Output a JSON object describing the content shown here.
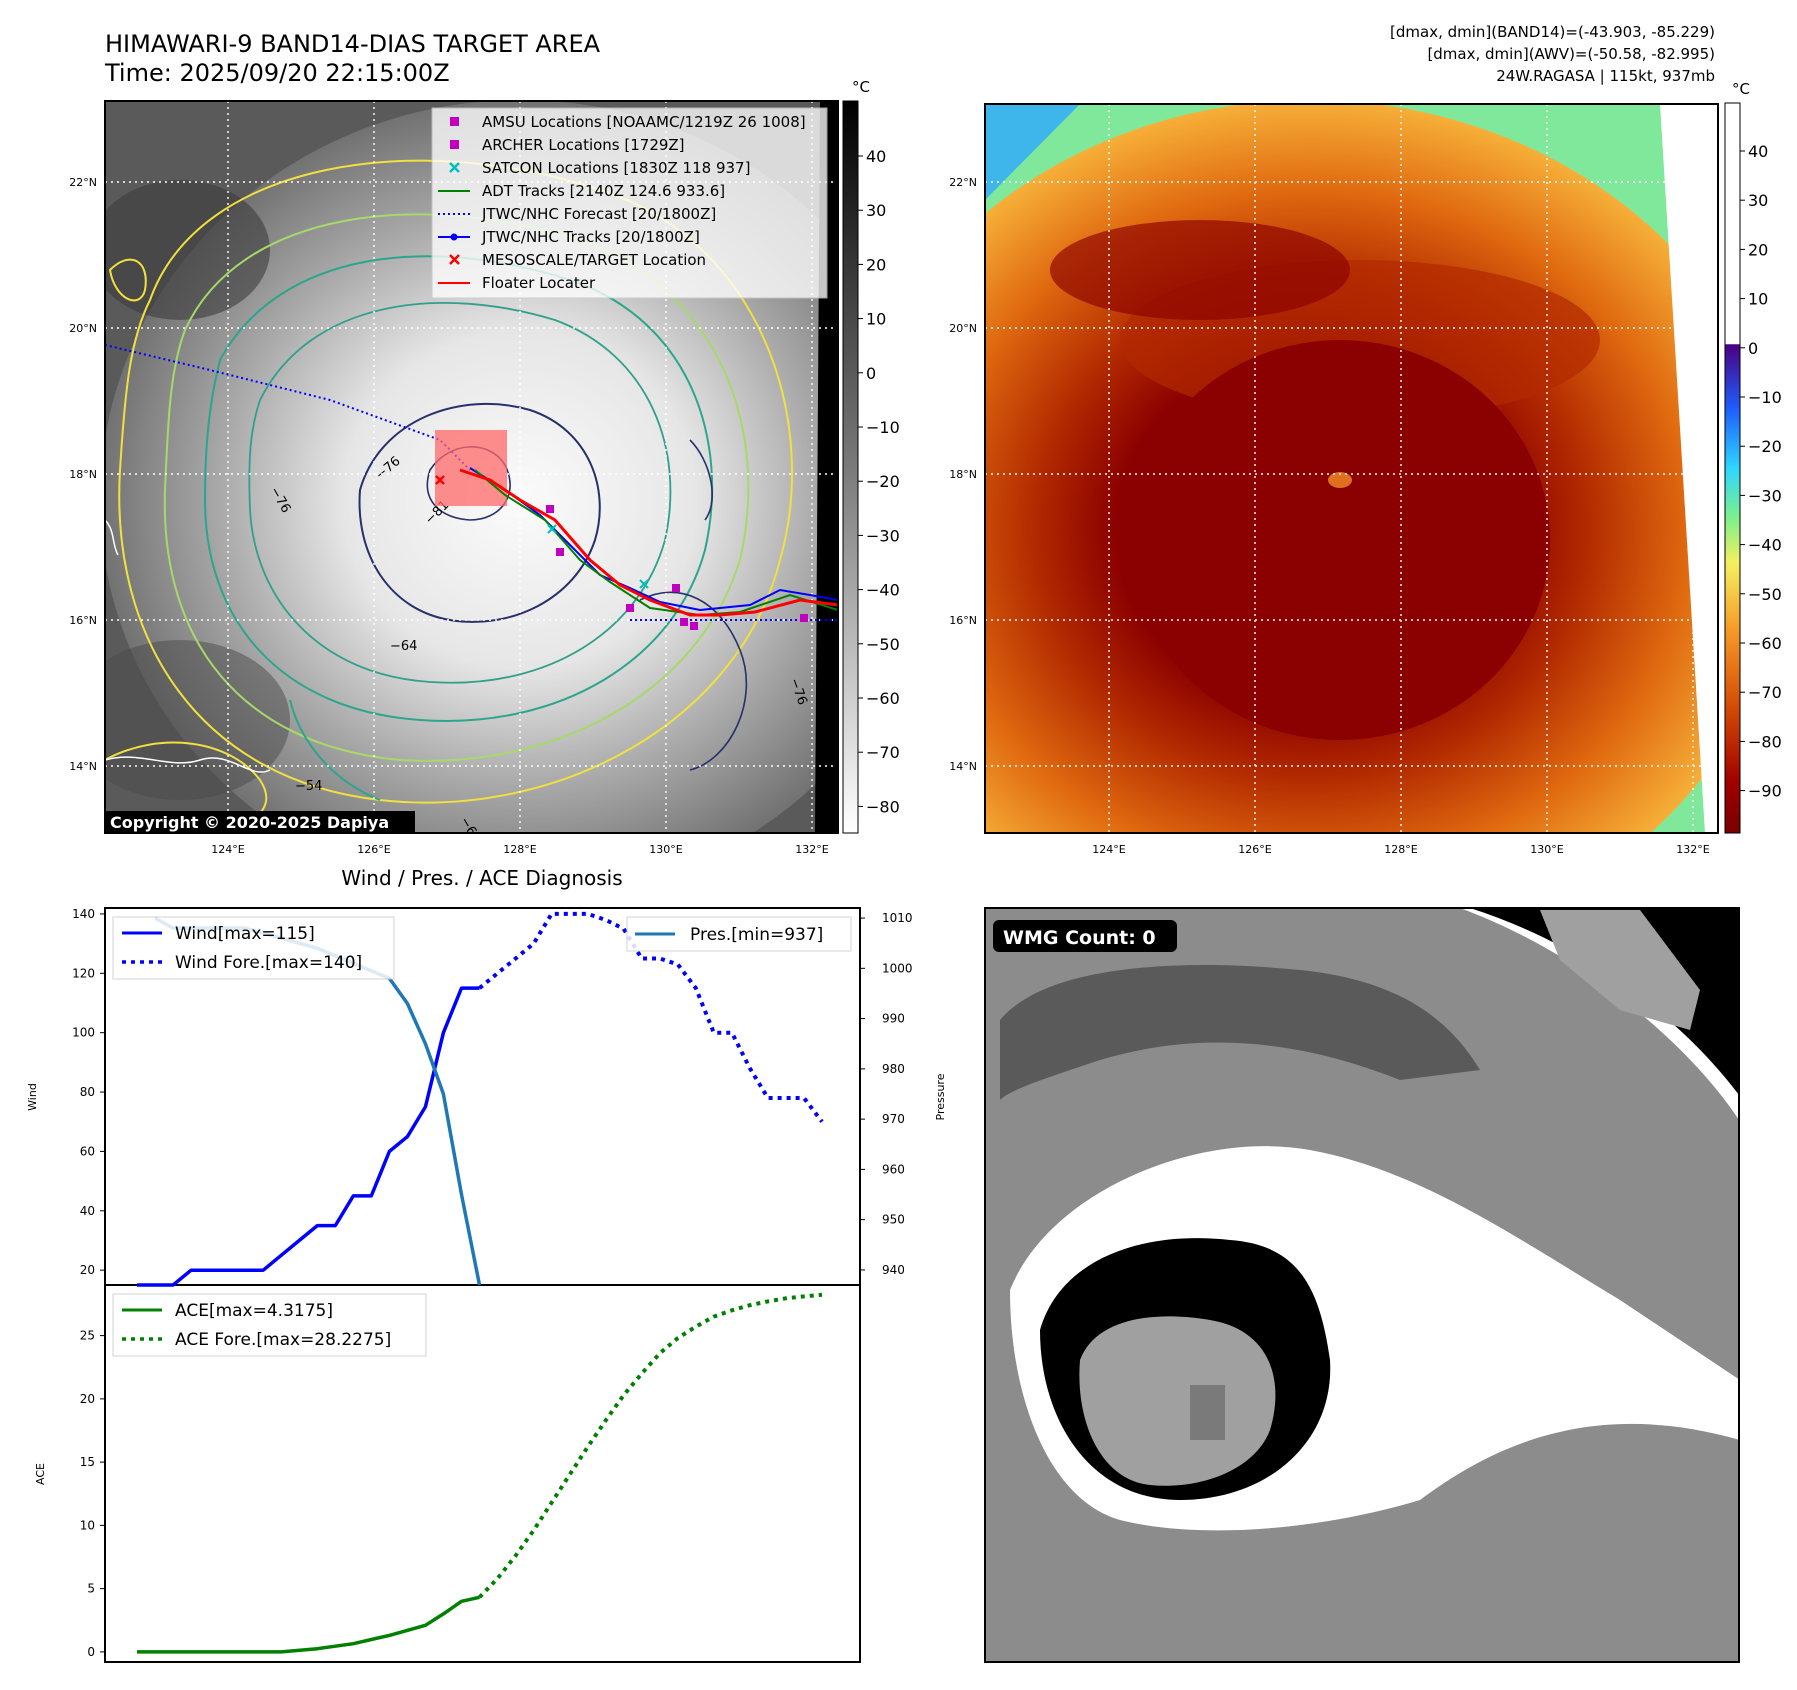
{
  "header": {
    "title_line1": "HIMAWARI-9 BAND14-DIAS TARGET AREA",
    "title_line2": "Time: 2025/09/20 22:15:00Z",
    "info_line1": "[dmax, dmin](BAND14)=(-43.903, -85.229)",
    "info_line2": "[dmax, dmin](AWV)=(-50.58, -82.995)",
    "info_line3": "24W.RAGASA | 115kt, 937mb"
  },
  "map_panel": {
    "lat_labels": [
      "22°N",
      "20°N",
      "18°N",
      "16°N",
      "14°N"
    ],
    "lon_labels": [
      "124°E",
      "126°E",
      "128°E",
      "130°E",
      "132°E"
    ],
    "colorbar_unit": "°C",
    "colorbar_ticks": [
      "40",
      "30",
      "20",
      "10",
      "0",
      "−10",
      "−20",
      "−30",
      "−40",
      "−50",
      "−60",
      "−70",
      "−80"
    ],
    "copyright": "Copyright © 2020-2025 Dapiya",
    "contour_labels": [
      "−76",
      "−81",
      "−64",
      "−54",
      "−76",
      "−76",
      "−64"
    ],
    "legend": [
      {
        "label": "AMSU Locations [NOAAMC/1219Z 26 1008]",
        "color": "#bf00bf",
        "marker": "square"
      },
      {
        "label": "ARCHER Locations [1729Z]",
        "color": "#bf00bf",
        "marker": "square"
      },
      {
        "label": "SATCON Locations [1830Z 118 937]",
        "color": "#00bfbf",
        "marker": "x"
      },
      {
        "label": "ADT Tracks [2140Z 124.6 933.6]",
        "color": "#008000",
        "marker": "line"
      },
      {
        "label": "JTWC/NHC Forecast [20/1800Z]",
        "color": "#0000ff",
        "marker": "dotted"
      },
      {
        "label": "JTWC/NHC Tracks [20/1800Z]",
        "color": "#0000ff",
        "marker": "line-dot"
      },
      {
        "label": "MESOSCALE/TARGET Location",
        "color": "#ff0000",
        "marker": "x"
      },
      {
        "label": "Floater Locater",
        "color": "#ff0000",
        "marker": "line"
      }
    ]
  },
  "awv_panel": {
    "lat_labels": [
      "22°N",
      "20°N",
      "18°N",
      "16°N",
      "14°N"
    ],
    "lon_labels": [
      "124°E",
      "126°E",
      "128°E",
      "130°E",
      "132°E"
    ],
    "colorbar_unit": "°C",
    "colorbar_ticks": [
      "40",
      "30",
      "20",
      "10",
      "0",
      "−10",
      "−20",
      "−30",
      "−40",
      "−50",
      "−60",
      "−70",
      "−80",
      "−90"
    ]
  },
  "wmg_panel": {
    "label": "WMG Count: 0"
  },
  "chart_data": [
    {
      "type": "line",
      "title": "Wind / Pres. / ACE Diagnosis",
      "ylabel": "Wind",
      "ylabel_right": "Pressure",
      "x": [
        0,
        1,
        2,
        3,
        4,
        5,
        6,
        7,
        8,
        9,
        10,
        11,
        12,
        13,
        14,
        15,
        16,
        17,
        18,
        19,
        20,
        21,
        22,
        23,
        24,
        25,
        26,
        27,
        28,
        29,
        30,
        31,
        32,
        33,
        34,
        35,
        36,
        37,
        38
      ],
      "ylim": [
        15,
        142
      ],
      "ylim_right": [
        937,
        1012
      ],
      "yticks": [
        "20",
        "40",
        "60",
        "80",
        "100",
        "120",
        "140"
      ],
      "yticks_right": [
        "940",
        "950",
        "960",
        "970",
        "980",
        "990",
        "1000",
        "1010"
      ],
      "series": [
        {
          "name": "Wind[max=115]",
          "color": "#0000ff",
          "style": "solid",
          "axis": "left",
          "x": [
            0,
            2,
            3,
            5,
            6,
            7,
            8,
            9,
            10,
            11,
            12,
            13,
            14,
            15,
            16,
            17,
            18,
            19
          ],
          "values": [
            15,
            15,
            20,
            20,
            20,
            20,
            25,
            30,
            35,
            35,
            45,
            45,
            60,
            65,
            75,
            100,
            115,
            115
          ]
        },
        {
          "name": "Wind Fore.[max=140]",
          "color": "#0000ff",
          "style": "dotted",
          "axis": "left",
          "x": [
            19,
            20,
            21,
            22,
            23,
            24,
            25,
            26,
            27,
            28,
            29,
            30,
            31,
            32,
            33,
            34,
            35,
            36,
            37,
            38
          ],
          "values": [
            115,
            120,
            125,
            130,
            140,
            140,
            140,
            138,
            135,
            125,
            125,
            123,
            115,
            100,
            100,
            88,
            78,
            78,
            78,
            70
          ]
        },
        {
          "name": "Pres.[min=937]",
          "color": "#1f77b4",
          "style": "solid",
          "axis": "right",
          "x": [
            1,
            2,
            4,
            6,
            8,
            10,
            12,
            14,
            15,
            16,
            17,
            18,
            19
          ],
          "values": [
            1010,
            1008,
            1008,
            1008,
            1006,
            1004,
            1001,
            998,
            993,
            985,
            975,
            955,
            937
          ]
        }
      ]
    },
    {
      "type": "line",
      "ylabel": "ACE",
      "x": [
        0,
        1,
        2,
        3,
        4,
        5,
        6,
        7,
        8,
        9,
        10,
        11,
        12,
        13,
        14,
        15,
        16,
        17,
        18,
        19,
        20,
        21,
        22,
        23,
        24,
        25,
        26,
        27,
        28,
        29,
        30,
        31,
        32,
        33,
        34,
        35,
        36,
        37,
        38
      ],
      "ylim": [
        -0.8,
        29
      ],
      "yticks": [
        "0",
        "5",
        "10",
        "15",
        "20",
        "25"
      ],
      "series": [
        {
          "name": "ACE[max=4.3175]",
          "color": "#008000",
          "style": "solid",
          "x": [
            0,
            4,
            8,
            10,
            12,
            14,
            16,
            17,
            18,
            19
          ],
          "values": [
            0,
            0,
            0,
            0.25,
            0.65,
            1.3,
            2.1,
            3.0,
            4.0,
            4.3175
          ]
        },
        {
          "name": "ACE Fore.[max=28.2275]",
          "color": "#008000",
          "style": "dotted",
          "x": [
            19,
            20,
            21,
            22,
            23,
            24,
            25,
            26,
            27,
            28,
            29,
            30,
            31,
            32,
            33,
            34,
            35,
            36,
            37,
            38
          ],
          "values": [
            4.3175,
            5.8,
            7.6,
            9.6,
            11.8,
            14.0,
            16.2,
            18.3,
            20.3,
            22.0,
            23.6,
            24.8,
            25.7,
            26.5,
            27.0,
            27.4,
            27.7,
            27.95,
            28.1,
            28.2275
          ]
        }
      ]
    }
  ]
}
